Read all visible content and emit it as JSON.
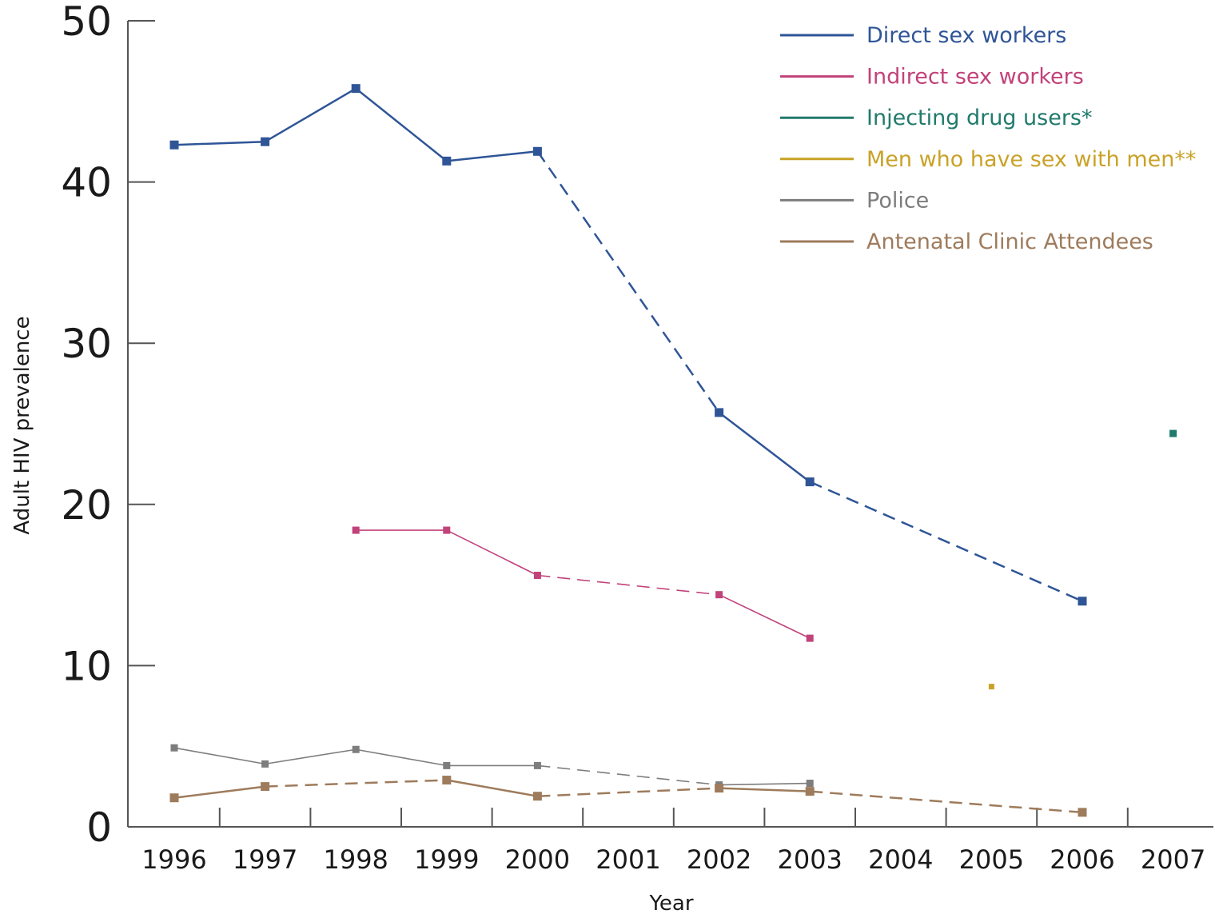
{
  "chart_data": {
    "type": "line",
    "title": "",
    "xlabel": "Year",
    "ylabel": "Adult HIV prevalence",
    "ylim": [
      0,
      50
    ],
    "yticks": [
      0,
      10,
      20,
      30,
      40,
      50
    ],
    "categories": [
      "1996",
      "1997",
      "1998",
      "1999",
      "2000",
      "2001",
      "2002",
      "2003",
      "2004",
      "2005",
      "2006",
      "2007"
    ],
    "legend_position": "top-right",
    "grid": false,
    "series": [
      {
        "name": "Direct sex workers",
        "color": "#2f5597",
        "marker_size": "large",
        "points": [
          {
            "x": "1996",
            "y": 42.3
          },
          {
            "x": "1997",
            "y": 42.5
          },
          {
            "x": "1998",
            "y": 45.8
          },
          {
            "x": "1999",
            "y": 41.3
          },
          {
            "x": "2000",
            "y": 41.9
          },
          {
            "x": "2002",
            "y": 25.7
          },
          {
            "x": "2003",
            "y": 21.4
          },
          {
            "x": "2006",
            "y": 14.0
          }
        ],
        "segments": [
          "solid",
          "solid",
          "solid",
          "solid",
          "dashed",
          "solid",
          "dashed"
        ]
      },
      {
        "name": "Indirect sex workers",
        "color": "#c2427a",
        "marker_size": "medium",
        "points": [
          {
            "x": "1998",
            "y": 18.4
          },
          {
            "x": "1999",
            "y": 18.4
          },
          {
            "x": "2000",
            "y": 15.6
          },
          {
            "x": "2002",
            "y": 14.4
          },
          {
            "x": "2003",
            "y": 11.7
          }
        ],
        "segments": [
          "solid",
          "solid",
          "dashed",
          "solid"
        ]
      },
      {
        "name": "Injecting drug users*",
        "color": "#217a6c",
        "marker_size": "medium",
        "points": [
          {
            "x": "2007",
            "y": 24.4
          }
        ],
        "segments": []
      },
      {
        "name": "Men who have sex with men**",
        "color": "#c9a227",
        "marker_size": "small",
        "points": [
          {
            "x": "2005",
            "y": 8.7
          }
        ],
        "segments": []
      },
      {
        "name": "Police",
        "color": "#7d7d7d",
        "marker_size": "medium",
        "points": [
          {
            "x": "1996",
            "y": 4.9
          },
          {
            "x": "1997",
            "y": 3.9
          },
          {
            "x": "1998",
            "y": 4.8
          },
          {
            "x": "1999",
            "y": 3.8
          },
          {
            "x": "2000",
            "y": 3.8
          },
          {
            "x": "2002",
            "y": 2.6
          },
          {
            "x": "2003",
            "y": 2.7
          }
        ],
        "segments": [
          "solid",
          "solid",
          "solid",
          "solid",
          "dashed",
          "solid"
        ]
      },
      {
        "name": "Antenatal Clinic Attendees",
        "color": "#9e7b5c",
        "marker_size": "large",
        "points": [
          {
            "x": "1996",
            "y": 1.8
          },
          {
            "x": "1997",
            "y": 2.5
          },
          {
            "x": "1999",
            "y": 2.9
          },
          {
            "x": "2000",
            "y": 1.9
          },
          {
            "x": "2002",
            "y": 2.4
          },
          {
            "x": "2003",
            "y": 2.2
          },
          {
            "x": "2006",
            "y": 0.9
          }
        ],
        "segments": [
          "solid",
          "dashed",
          "solid",
          "dashed",
          "solid",
          "dashed"
        ]
      }
    ]
  }
}
